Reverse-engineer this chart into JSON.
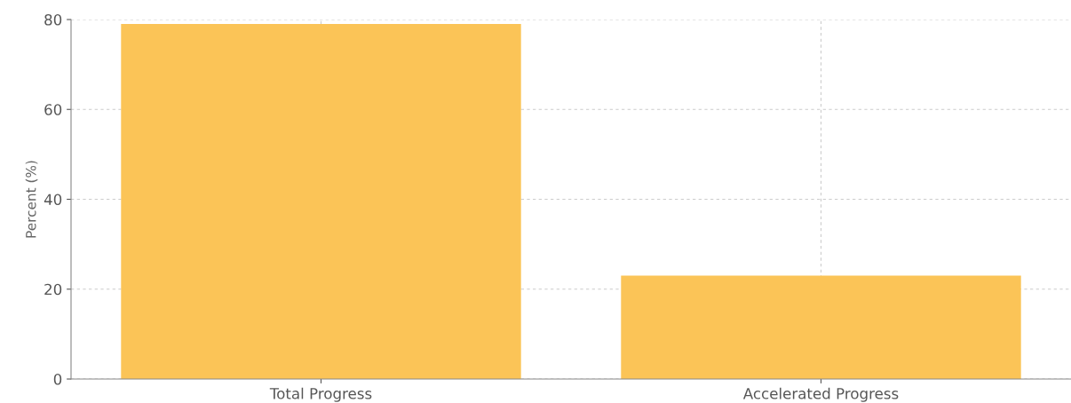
{
  "chart_data": {
    "type": "bar",
    "ylabel": "Percent (%)",
    "categories": [
      "Total Progress",
      "Accelerated Progress"
    ],
    "values": [
      79,
      23
    ],
    "color": "#fbc457",
    "ylim": [
      0,
      80
    ],
    "yticks": [
      0,
      20,
      40,
      60,
      80
    ],
    "grid": true
  }
}
